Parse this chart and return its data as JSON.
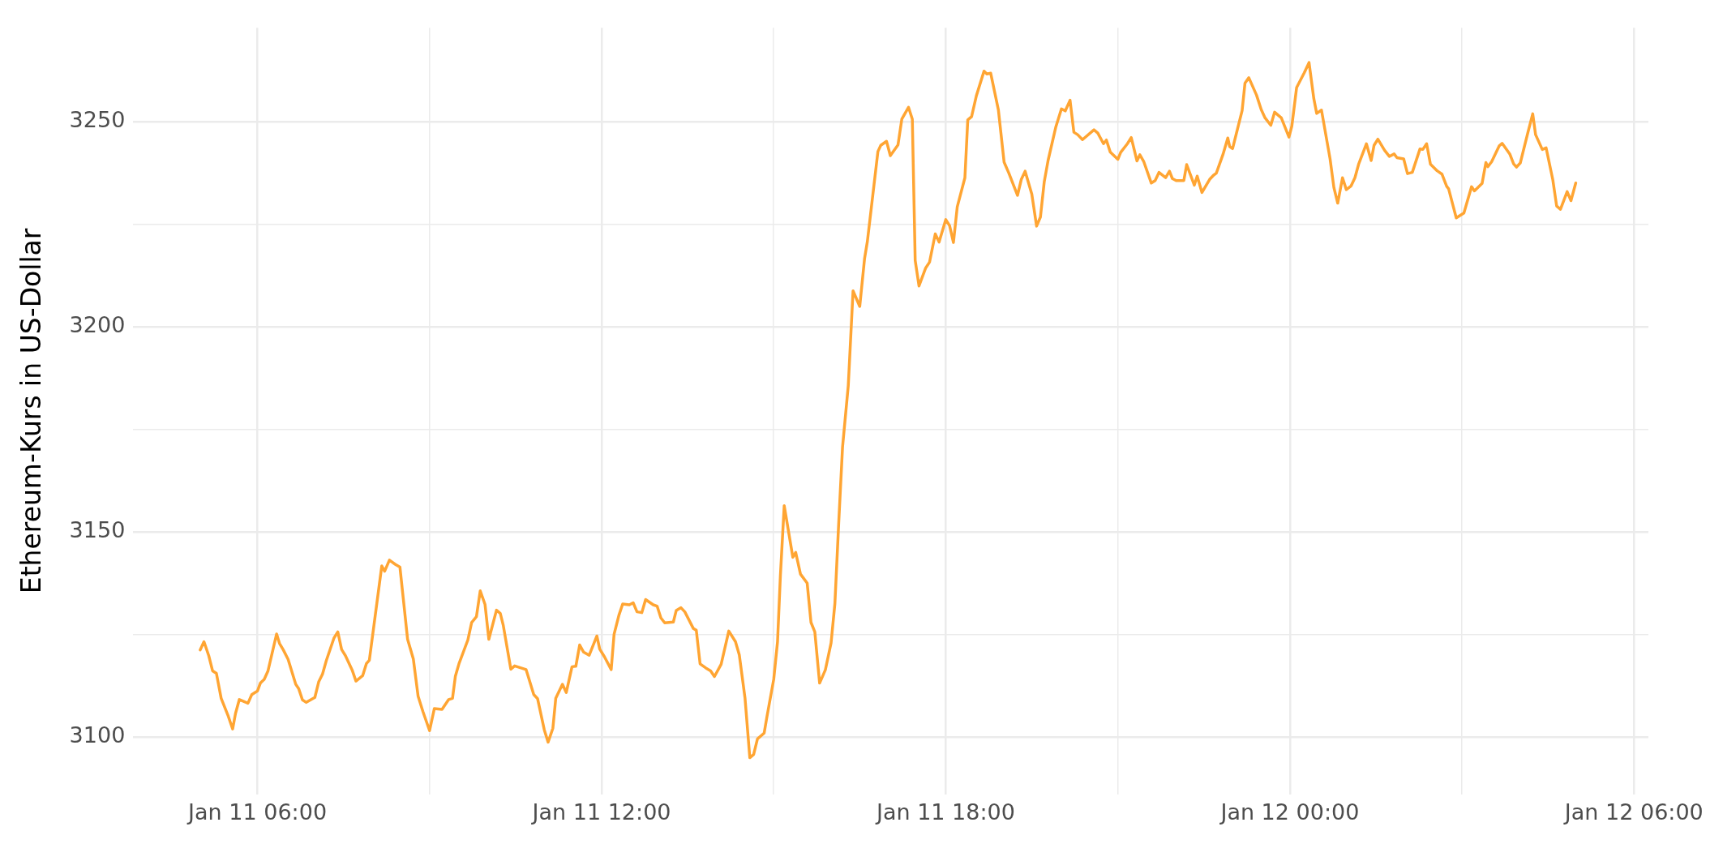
{
  "chart_data": {
    "type": "line",
    "ylabel": "Ethereum-Kurs in US-Dollar",
    "color": "#ffa533",
    "grid": true,
    "legend": false,
    "xlim": [
      "--01-11T03:50",
      "--01-12T06:15"
    ],
    "xticks": [
      {
        "value": "--01-11T06:00",
        "label": "Jan 11 06:00"
      },
      {
        "value": "--01-11T09:00",
        "label": null
      },
      {
        "value": "--01-11T12:00",
        "label": "Jan 11 12:00"
      },
      {
        "value": "--01-11T15:00",
        "label": null
      },
      {
        "value": "--01-11T18:00",
        "label": "Jan 11 18:00"
      },
      {
        "value": "--01-11T21:00",
        "label": null
      },
      {
        "value": "--01-12T00:00",
        "label": "Jan 12 00:00"
      },
      {
        "value": "--01-12T03:00",
        "label": null
      },
      {
        "value": "--01-12T06:00",
        "label": "Jan 12 06:00"
      }
    ],
    "ylim": [
      3086,
      3273
    ],
    "yticks": [
      3100,
      {
        "value": 3125,
        "label": null
      },
      3150,
      {
        "value": 3175,
        "label": null
      },
      3200,
      {
        "value": 3225,
        "label": null
      },
      3250
    ],
    "x": [
      "--01-11T05:00",
      "--01-11T05:04",
      "--01-11T05:09",
      "--01-11T05:13",
      "--01-11T05:17",
      "--01-11T05:22",
      "--01-11T05:29",
      "--01-11T05:34",
      "--01-11T05:37",
      "--01-11T05:41",
      "--01-11T05:50",
      "--01-11T05:54",
      "--01-11T06:00",
      "--01-11T06:03",
      "--01-11T06:07",
      "--01-11T06:11",
      "--01-11T06:20",
      "--01-11T06:23",
      "--01-11T06:27",
      "--01-11T06:32",
      "--01-11T06:40",
      "--01-11T06:43",
      "--01-11T06:47",
      "--01-11T06:51",
      "--01-11T07:00",
      "--01-11T07:04",
      "--01-11T07:08",
      "--01-11T07:12",
      "--01-11T07:20",
      "--01-11T07:24",
      "--01-11T07:28",
      "--01-11T07:32",
      "--01-11T07:39",
      "--01-11T07:43",
      "--01-11T07:50",
      "--01-11T07:54",
      "--01-11T07:57",
      "--01-11T08:10",
      "--01-11T08:13",
      "--01-11T08:18",
      "--01-11T08:24",
      "--01-11T08:29",
      "--01-11T08:32",
      "--01-11T08:37",
      "--01-11T08:43",
      "--01-11T08:48",
      "--01-11T08:53",
      "--01-11T09:00",
      "--01-11T09:05",
      "--01-11T09:13",
      "--01-11T09:20",
      "--01-11T09:24",
      "--01-11T09:27",
      "--01-11T09:31",
      "--01-11T09:40",
      "--01-11T09:44",
      "--01-11T09:49",
      "--01-11T09:53",
      "--01-11T09:58",
      "--01-11T10:02",
      "--01-11T10:10",
      "--01-11T10:14",
      "--01-11T10:17",
      "--01-11T10:25",
      "--01-11T10:29",
      "--01-11T10:41",
      "--01-11T10:49",
      "--01-11T10:53",
      "--01-11T11:00",
      "--01-11T11:04",
      "--01-11T11:09",
      "--01-11T11:12",
      "--01-11T11:19",
      "--01-11T11:23",
      "--01-11T11:29",
      "--01-11T11:33",
      "--01-11T11:37",
      "--01-11T11:41",
      "--01-11T11:47",
      "--01-11T11:55",
      "--01-11T11:58",
      "--01-11T12:03",
      "--01-11T12:10",
      "--01-11T12:13",
      "--01-11T12:18",
      "--01-11T12:22",
      "--01-11T12:29",
      "--01-11T12:33",
      "--01-11T12:37",
      "--01-11T12:42",
      "--01-11T12:46",
      "--01-11T12:54",
      "--01-11T12:58",
      "--01-11T13:02",
      "--01-11T13:06",
      "--01-11T13:15",
      "--01-11T13:18",
      "--01-11T13:23",
      "--01-11T13:27",
      "--01-11T13:36",
      "--01-11T13:39",
      "--01-11T13:43",
      "--01-11T13:49",
      "--01-11T13:54",
      "--01-11T13:58",
      "--01-11T14:05",
      "--01-11T14:13",
      "--01-11T14:20",
      "--01-11T14:24",
      "--01-11T14:30",
      "--01-11T14:35",
      "--01-11T14:39",
      "--01-11T14:43",
      "--01-11T14:50",
      "--01-11T14:53",
      "--01-11T15:00",
      "--01-11T15:04",
      "--01-11T15:07",
      "--01-11T15:11",
      "--01-11T15:20",
      "--01-11T15:23",
      "--01-11T15:28",
      "--01-11T15:35",
      "--01-11T15:39",
      "--01-11T15:43",
      "--01-11T15:48",
      "--01-11T15:54",
      "--01-11T16:00",
      "--01-11T16:04",
      "--01-11T16:08",
      "--01-11T16:12",
      "--01-11T16:18",
      "--01-11T16:23",
      "--01-11T16:30",
      "--01-11T16:35",
      "--01-11T16:38",
      "--01-11T16:49",
      "--01-11T16:52",
      "--01-11T16:58",
      "--01-11T17:02",
      "--01-11T17:10",
      "--01-11T17:14",
      "--01-11T17:21",
      "--01-11T17:25",
      "--01-11T17:28",
      "--01-11T17:32",
      "--01-11T17:39",
      "--01-11T17:43",
      "--01-11T17:49",
      "--01-11T17:53",
      "--01-11T18:00",
      "--01-11T18:04",
      "--01-11T18:08",
      "--01-11T18:12",
      "--01-11T18:20",
      "--01-11T18:23",
      "--01-11T18:27",
      "--01-11T18:32",
      "--01-11T18:40",
      "--01-11T18:43",
      "--01-11T18:47",
      "--01-11T18:55",
      "--01-11T19:01",
      "--01-11T19:06",
      "--01-11T19:15",
      "--01-11T19:19",
      "--01-11T19:23",
      "--01-11T19:30",
      "--01-11T19:35",
      "--01-11T19:39",
      "--01-11T19:43",
      "--01-11T19:47",
      "--01-11T19:55",
      "--01-11T20:01",
      "--01-11T20:05",
      "--01-11T20:10",
      "--01-11T20:14",
      "--01-11T20:18",
      "--01-11T20:23",
      "--01-11T20:35",
      "--01-11T20:39",
      "--01-11T20:45",
      "--01-11T20:48",
      "--01-11T20:52",
      "--01-11T21:00",
      "--01-11T21:03",
      "--01-11T21:10",
      "--01-11T21:14",
      "--01-11T21:20",
      "--01-11T21:23",
      "--01-11T21:27",
      "--01-11T21:35",
      "--01-11T21:39",
      "--01-11T21:43",
      "--01-11T21:50",
      "--01-11T21:54",
      "--01-11T21:57",
      "--01-11T22:01",
      "--01-11T22:09",
      "--01-11T22:12",
      "--01-11T22:20",
      "--01-11T22:23",
      "--01-11T22:28",
      "--01-11T22:36",
      "--01-11T22:40",
      "--01-11T22:43",
      "--01-11T22:50",
      "--01-11T22:55",
      "--01-11T22:57",
      "--01-11T23:00",
      "--01-11T23:10",
      "--01-11T23:13",
      "--01-11T23:17",
      "--01-11T23:25",
      "--01-11T23:30",
      "--01-11T23:34",
      "--01-11T23:40",
      "--01-11T23:44",
      "--01-11T23:51",
      "--01-11T23:59",
      "--01-12T00:02",
      "--01-12T00:07",
      "--01-12T00:15",
      "--01-12T00:20",
      "--01-12T00:25",
      "--01-12T00:28",
      "--01-12T00:33",
      "--01-12T00:42",
      "--01-12T00:46",
      "--01-12T00:50",
      "--01-12T00:55",
      "--01-12T00:59",
      "--01-12T01:04",
      "--01-12T01:08",
      "--01-12T01:12",
      "--01-12T01:20",
      "--01-12T01:25",
      "--01-12T01:28",
      "--01-12T01:32",
      "--01-12T01:39",
      "--01-12T01:44",
      "--01-12T01:49",
      "--01-12T01:52",
      "--01-12T01:59",
      "--01-12T02:03",
      "--01-12T02:08",
      "--01-12T02:16",
      "--01-12T02:19",
      "--01-12T02:23",
      "--01-12T02:27",
      "--01-12T02:34",
      "--01-12T02:39",
      "--01-12T02:44",
      "--01-12T02:46",
      "--01-12T02:54",
      "--01-12T03:02",
      "--01-12T03:10",
      "--01-12T03:13",
      "--01-12T03:21",
      "--01-12T03:25",
      "--01-12T03:27",
      "--01-12T03:31",
      "--01-12T03:39",
      "--01-12T03:42",
      "--01-12T03:50",
      "--01-12T03:54",
      "--01-12T03:57",
      "--01-12T04:01",
      "--01-12T04:09",
      "--01-12T04:14",
      "--01-12T04:17",
      "--01-12T04:24",
      "--01-12T04:28",
      "--01-12T04:35",
      "--01-12T04:39",
      "--01-12T04:43",
      "--01-12T04:50",
      "--01-12T04:54",
      "--01-12T04:59"
    ],
    "values": [
      3121.2,
      3123.2,
      3119.8,
      3116.1,
      3115.5,
      3109.4,
      3105.3,
      3101.9,
      3105.7,
      3109.1,
      3108.2,
      3110.3,
      3111.2,
      3113.1,
      3114.0,
      3116.1,
      3125.1,
      3122.8,
      3121.2,
      3118.9,
      3112.8,
      3111.8,
      3109.0,
      3108.4,
      3109.6,
      3113.4,
      3115.3,
      3118.6,
      3124.1,
      3125.6,
      3121.3,
      3119.8,
      3116.3,
      3113.6,
      3114.9,
      3117.9,
      3118.7,
      3141.7,
      3140.4,
      3143.1,
      3142.1,
      3141.4,
      3134.8,
      3123.8,
      3119.0,
      3109.9,
      3106.2,
      3101.5,
      3106.9,
      3106.7,
      3109.1,
      3109.4,
      3114.8,
      3118.0,
      3123.6,
      3127.9,
      3129.3,
      3135.6,
      3132.3,
      3123.8,
      3130.9,
      3130.1,
      3127.3,
      3116.5,
      3117.3,
      3116.4,
      3110.3,
      3109.3,
      3101.7,
      3098.7,
      3102.1,
      3109.4,
      3112.8,
      3110.8,
      3117.1,
      3117.2,
      3122.4,
      3120.7,
      3119.9,
      3124.6,
      3121.4,
      3119.5,
      3116.4,
      3125.0,
      3129.6,
      3132.4,
      3132.2,
      3132.7,
      3130.5,
      3130.3,
      3133.5,
      3132.2,
      3131.9,
      3129.0,
      3127.8,
      3128.0,
      3130.8,
      3131.5,
      3130.5,
      3126.4,
      3126.0,
      3117.8,
      3116.8,
      3116.1,
      3114.7,
      3117.7,
      3125.8,
      3123.2,
      3120.0,
      3109.4,
      3094.9,
      3095.7,
      3099.5,
      3100.9,
      3105.0,
      3114.0,
      3123.2,
      3139.4,
      3156.4,
      3143.8,
      3145.0,
      3139.7,
      3137.5,
      3127.9,
      3125.6,
      3113.1,
      3116.3,
      3122.9,
      3132.5,
      3152.2,
      3170.7,
      3185.7,
      3208.8,
      3205.0,
      3216.6,
      3220.9,
      3242.8,
      3244.3,
      3245.3,
      3241.8,
      3244.4,
      3250.7,
      3253.6,
      3250.7,
      3216.2,
      3210.0,
      3214.4,
      3215.8,
      3222.7,
      3220.7,
      3226.2,
      3224.7,
      3220.6,
      3229.3,
      3236.4,
      3250.5,
      3251.3,
      3256.4,
      3262.4,
      3261.7,
      3261.9,
      3253.0,
      3240.2,
      3237.5,
      3232.1,
      3236.0,
      3238.0,
      3232.4,
      3224.6,
      3226.8,
      3235.4,
      3240.6,
      3248.7,
      3253.2,
      3252.7,
      3255.3,
      3247.5,
      3246.9,
      3245.7,
      3248.1,
      3247.3,
      3244.7,
      3245.6,
      3242.7,
      3240.9,
      3242.6,
      3244.7,
      3246.2,
      3240.5,
      3242.0,
      3240.4,
      3235.1,
      3235.7,
      3237.7,
      3236.4,
      3238.0,
      3236.2,
      3235.7,
      3235.7,
      3239.6,
      3234.6,
      3236.8,
      3232.8,
      3236.0,
      3237.0,
      3237.5,
      3242.1,
      3246.1,
      3244.0,
      3243.5,
      3252.8,
      3259.5,
      3260.8,
      3256.6,
      3253.0,
      3251.0,
      3249.2,
      3252.4,
      3251.0,
      3246.3,
      3249.0,
      3258.4,
      3262.0,
      3264.5,
      3255.7,
      3252.1,
      3252.9,
      3241.0,
      3234.0,
      3230.2,
      3236.4,
      3233.5,
      3234.4,
      3236.4,
      3239.8,
      3244.7,
      3240.6,
      3244.3,
      3245.8,
      3243.1,
      3241.6,
      3242.2,
      3241.3,
      3241.0,
      3237.4,
      3237.7,
      3243.4,
      3243.3,
      3244.7,
      3239.7,
      3238.1,
      3237.3,
      3234.3,
      3233.7,
      3226.6,
      3227.8,
      3234.2,
      3233.2,
      3235.0,
      3240.1,
      3239.1,
      3240.3,
      3244.2,
      3244.8,
      3242.2,
      3239.8,
      3239.0,
      3240.0,
      3247.5,
      3252.0,
      3246.9,
      3243.3,
      3243.7,
      3235.9,
      3229.5,
      3228.7,
      3233.0,
      3230.8,
      3235.1
    ]
  }
}
